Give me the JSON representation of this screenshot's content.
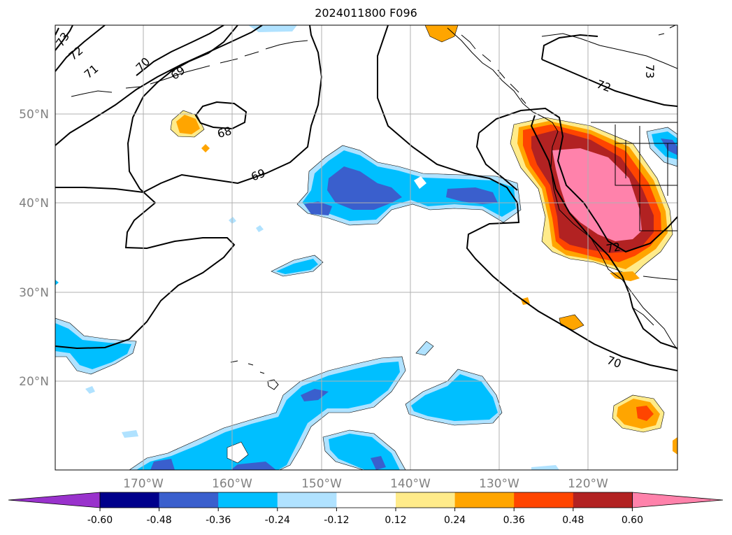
{
  "title": "2024011800 F096",
  "map": {
    "lat_labels": [
      "50°N",
      "40°N",
      "30°N",
      "20°N"
    ],
    "lon_labels": [
      "170°W",
      "160°W",
      "150°W",
      "140°W",
      "130°W",
      "120°W"
    ],
    "grid": true,
    "contour_labels": [
      "73",
      "72",
      "71",
      "70",
      "69",
      "68",
      "69",
      "72",
      "73",
      "72",
      "70"
    ]
  },
  "colorbar": {
    "extend": "both",
    "bounds": [
      "-0.60",
      "-0.48",
      "-0.36",
      "-0.24",
      "-0.12",
      "0.12",
      "0.24",
      "0.36",
      "0.48",
      "0.60"
    ],
    "colors": {
      "below": "#9932cc",
      "c1": "#00008b",
      "c2": "#3a5fcd",
      "c3": "#00bfff",
      "c4": "#b0e2ff",
      "c5": "#ffffff",
      "c6": "#ffeb8a",
      "c7": "#ffa500",
      "c8": "#ff4500",
      "c9": "#b22222",
      "above": "#ff82ab"
    }
  }
}
